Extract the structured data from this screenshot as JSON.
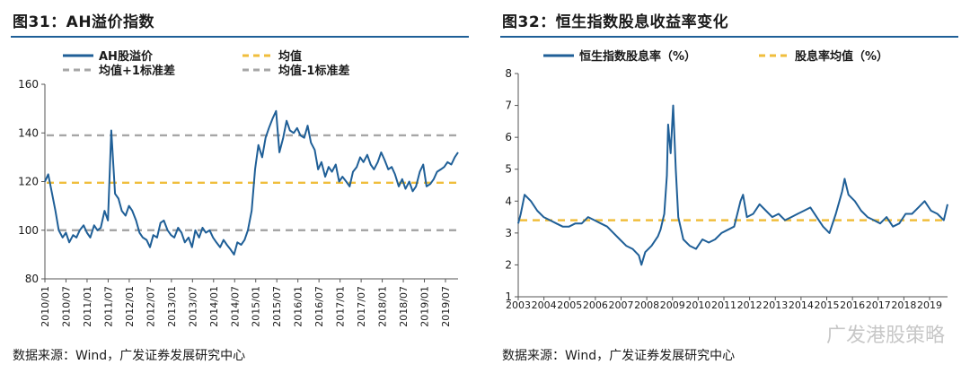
{
  "left": {
    "title": "图31：AH溢价指数",
    "source": "数据来源：Wind，广发证券发展研究中心",
    "chart_data": {
      "type": "line",
      "ylim": [
        80,
        160
      ],
      "yticks": [
        80,
        100,
        120,
        140,
        160
      ],
      "xlim": [
        2010.0,
        2019.83
      ],
      "xtick_labels": [
        "2010/01",
        "2010/07",
        "2011/01",
        "2011/07",
        "2012/01",
        "2012/07",
        "2013/01",
        "2013/07",
        "2014/01",
        "2014/07",
        "2015/01",
        "2015/07",
        "2016/01",
        "2016/07",
        "2017/01",
        "2017/07",
        "2018/01",
        "2018/07",
        "2019/01",
        "2019/07"
      ],
      "legend": [
        "AH股溢价",
        "均值",
        "均值+1标准差",
        "均值-1标准差"
      ],
      "series": [
        {
          "name": "AH股溢价",
          "color": "#1f5f97",
          "kind": "line",
          "x": [
            2010.0,
            2010.08,
            2010.17,
            2010.25,
            2010.33,
            2010.42,
            2010.5,
            2010.58,
            2010.67,
            2010.75,
            2010.83,
            2010.92,
            2011.0,
            2011.08,
            2011.17,
            2011.25,
            2011.33,
            2011.42,
            2011.5,
            2011.58,
            2011.67,
            2011.75,
            2011.83,
            2011.92,
            2012.0,
            2012.08,
            2012.17,
            2012.25,
            2012.33,
            2012.42,
            2012.5,
            2012.58,
            2012.67,
            2012.75,
            2012.83,
            2012.92,
            2013.0,
            2013.08,
            2013.17,
            2013.25,
            2013.33,
            2013.42,
            2013.5,
            2013.58,
            2013.67,
            2013.75,
            2013.83,
            2013.92,
            2014.0,
            2014.08,
            2014.17,
            2014.25,
            2014.33,
            2014.42,
            2014.5,
            2014.58,
            2014.67,
            2014.75,
            2014.83,
            2014.92,
            2015.0,
            2015.08,
            2015.17,
            2015.25,
            2015.33,
            2015.42,
            2015.5,
            2015.58,
            2015.67,
            2015.75,
            2015.83,
            2015.92,
            2016.0,
            2016.08,
            2016.17,
            2016.25,
            2016.33,
            2016.42,
            2016.5,
            2016.58,
            2016.67,
            2016.75,
            2016.83,
            2016.92,
            2017.0,
            2017.08,
            2017.17,
            2017.25,
            2017.33,
            2017.42,
            2017.5,
            2017.58,
            2017.67,
            2017.75,
            2017.83,
            2017.92,
            2018.0,
            2018.08,
            2018.17,
            2018.25,
            2018.33,
            2018.42,
            2018.5,
            2018.58,
            2018.67,
            2018.75,
            2018.83,
            2018.92,
            2019.0,
            2019.08,
            2019.17,
            2019.25,
            2019.33,
            2019.42,
            2019.5,
            2019.58,
            2019.67,
            2019.75,
            2019.83
          ],
          "y": [
            120,
            123,
            115,
            108,
            100,
            97,
            99,
            95,
            98,
            97,
            100,
            102,
            99,
            97,
            102,
            100,
            101,
            108,
            104,
            141,
            115,
            113,
            108,
            106,
            110,
            108,
            104,
            99,
            97,
            96,
            93,
            98,
            97,
            103,
            104,
            100,
            98,
            97,
            101,
            99,
            95,
            97,
            93,
            100,
            97,
            101,
            99,
            100,
            97,
            95,
            93,
            96,
            94,
            92,
            90,
            95,
            94,
            96,
            100,
            108,
            125,
            135,
            130,
            138,
            142,
            146,
            149,
            132,
            138,
            145,
            141,
            140,
            142,
            139,
            138,
            143,
            136,
            133,
            125,
            128,
            122,
            126,
            124,
            127,
            120,
            122,
            120,
            118,
            124,
            126,
            130,
            128,
            131,
            127,
            125,
            128,
            132,
            129,
            125,
            126,
            123,
            118,
            121,
            117,
            120,
            116,
            118,
            124,
            127,
            118,
            119,
            121,
            124,
            125,
            126,
            128,
            127,
            130,
            132
          ]
        },
        {
          "name": "均值",
          "color": "#f0be3c",
          "kind": "hline",
          "value": 119.5
        },
        {
          "name": "均值+1标准差",
          "color": "#a6a6a6",
          "kind": "hline",
          "value": 139
        },
        {
          "name": "均值-1标准差",
          "color": "#a6a6a6",
          "kind": "hline",
          "value": 100
        }
      ]
    }
  },
  "right": {
    "title": "图32：恒生指数股息收益率变化",
    "source": "数据来源：Wind，广发证券发展研究中心",
    "watermark": "广发港股策略",
    "chart_data": {
      "type": "line",
      "ylim": [
        1,
        8
      ],
      "yticks": [
        1,
        2,
        3,
        4,
        5,
        6,
        7,
        8
      ],
      "xlim": [
        2003.0,
        2019.9
      ],
      "xtick_labels": [
        "2003",
        "2004",
        "2005",
        "2006",
        "2007",
        "2008",
        "2009",
        "2010",
        "2011",
        "2012",
        "2013",
        "2014",
        "2015",
        "2016",
        "2017",
        "2018",
        "2019"
      ],
      "legend": [
        "恒生指数股息率（%）",
        "股息率均值（%）"
      ],
      "series": [
        {
          "name": "恒生指数股息率（%）",
          "color": "#1f5f97",
          "kind": "line",
          "x": [
            2003.0,
            2003.1,
            2003.25,
            2003.5,
            2003.75,
            2004.0,
            2004.25,
            2004.5,
            2004.75,
            2005.0,
            2005.25,
            2005.5,
            2005.75,
            2006.0,
            2006.25,
            2006.5,
            2006.75,
            2007.0,
            2007.25,
            2007.5,
            2007.75,
            2007.85,
            2008.0,
            2008.25,
            2008.5,
            2008.6,
            2008.75,
            2008.85,
            2008.9,
            2009.0,
            2009.1,
            2009.2,
            2009.3,
            2009.5,
            2009.75,
            2010.0,
            2010.25,
            2010.5,
            2010.75,
            2011.0,
            2011.25,
            2011.5,
            2011.75,
            2011.85,
            2012.0,
            2012.25,
            2012.5,
            2012.75,
            2013.0,
            2013.25,
            2013.5,
            2013.75,
            2014.0,
            2014.25,
            2014.5,
            2014.75,
            2015.0,
            2015.25,
            2015.5,
            2015.75,
            2015.85,
            2016.0,
            2016.25,
            2016.5,
            2016.75,
            2017.0,
            2017.25,
            2017.5,
            2017.75,
            2018.0,
            2018.25,
            2018.5,
            2018.75,
            2019.0,
            2019.25,
            2019.5,
            2019.75,
            2019.9
          ],
          "y": [
            3.3,
            3.6,
            4.2,
            4.0,
            3.7,
            3.5,
            3.4,
            3.3,
            3.2,
            3.2,
            3.3,
            3.3,
            3.5,
            3.4,
            3.3,
            3.2,
            3.0,
            2.8,
            2.6,
            2.5,
            2.3,
            2.0,
            2.4,
            2.6,
            2.9,
            3.1,
            3.6,
            4.8,
            6.4,
            5.5,
            7.0,
            5.0,
            3.5,
            2.8,
            2.6,
            2.5,
            2.8,
            2.7,
            2.8,
            3.0,
            3.1,
            3.2,
            4.0,
            4.2,
            3.5,
            3.6,
            3.9,
            3.7,
            3.5,
            3.6,
            3.4,
            3.5,
            3.6,
            3.7,
            3.8,
            3.5,
            3.2,
            3.0,
            3.6,
            4.3,
            4.7,
            4.2,
            4.0,
            3.7,
            3.5,
            3.4,
            3.3,
            3.5,
            3.2,
            3.3,
            3.6,
            3.6,
            3.8,
            4.0,
            3.7,
            3.6,
            3.4,
            3.9
          ]
        },
        {
          "name": "股息率均值（%）",
          "color": "#f0be3c",
          "kind": "hline",
          "value": 3.4
        }
      ]
    }
  }
}
